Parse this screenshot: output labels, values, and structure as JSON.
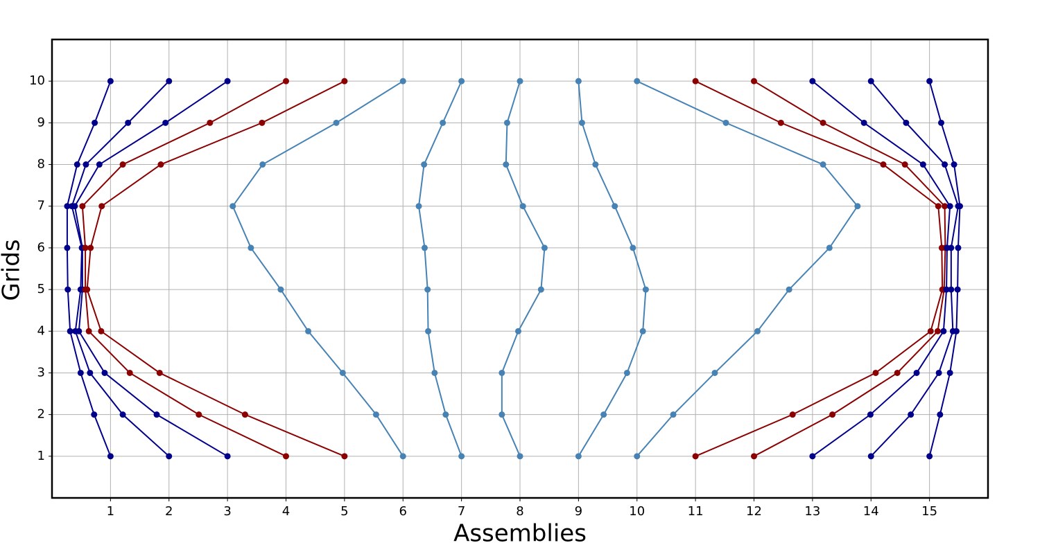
{
  "chart_data": {
    "type": "line",
    "xlabel": "Assemblies",
    "ylabel": "Grids",
    "xlim": [
      0,
      16
    ],
    "ylim": [
      0,
      11
    ],
    "xticks": [
      1,
      2,
      3,
      4,
      5,
      6,
      7,
      8,
      9,
      10,
      11,
      12,
      13,
      14,
      15
    ],
    "yticks": [
      1,
      2,
      3,
      4,
      5,
      6,
      7,
      8,
      9,
      10
    ],
    "grid": true,
    "y": [
      1,
      2,
      3,
      4,
      5,
      6,
      7,
      8,
      9,
      10
    ],
    "series": [
      {
        "color": "#00008b",
        "x": [
          1.0,
          0.72,
          0.49,
          0.31,
          0.27,
          0.26,
          0.26,
          0.43,
          0.73,
          1.0
        ]
      },
      {
        "color": "#00008b",
        "x": [
          2.0,
          1.21,
          0.65,
          0.4,
          0.49,
          0.51,
          0.34,
          0.58,
          1.3,
          2.0
        ]
      },
      {
        "color": "#00008b",
        "x": [
          3.0,
          1.79,
          0.9,
          0.46,
          0.52,
          0.52,
          0.39,
          0.81,
          1.94,
          3.0
        ]
      },
      {
        "color": "#8b0000",
        "x": [
          4.0,
          2.51,
          1.33,
          0.63,
          0.57,
          0.57,
          0.52,
          1.21,
          2.7,
          4.0
        ]
      },
      {
        "color": "#8b0000",
        "x": [
          5.0,
          3.3,
          1.84,
          0.84,
          0.6,
          0.66,
          0.85,
          1.86,
          3.59,
          5.0
        ]
      },
      {
        "color": "#4682b4",
        "x": [
          6.0,
          5.54,
          4.97,
          4.38,
          3.91,
          3.4,
          3.09,
          3.6,
          4.86,
          6.0
        ]
      },
      {
        "color": "#4682b4",
        "x": [
          7.0,
          6.73,
          6.54,
          6.43,
          6.42,
          6.37,
          6.27,
          6.36,
          6.68,
          7.0
        ]
      },
      {
        "color": "#4682b4",
        "x": [
          8.0,
          7.69,
          7.69,
          7.97,
          8.36,
          8.42,
          8.05,
          7.76,
          7.78,
          8.0
        ]
      },
      {
        "color": "#4682b4",
        "x": [
          9.0,
          9.43,
          9.83,
          10.1,
          10.15,
          9.93,
          9.62,
          9.29,
          9.06,
          9.0
        ]
      },
      {
        "color": "#4682b4",
        "x": [
          10.0,
          10.62,
          11.33,
          12.06,
          12.6,
          13.29,
          13.77,
          13.18,
          11.52,
          10.0
        ]
      },
      {
        "color": "#8b0000",
        "x": [
          11.0,
          12.66,
          14.08,
          15.02,
          15.22,
          15.21,
          15.15,
          14.21,
          12.46,
          11.0
        ]
      },
      {
        "color": "#8b0000",
        "x": [
          12.0,
          13.34,
          14.45,
          15.14,
          15.25,
          15.27,
          15.26,
          14.58,
          13.18,
          12.0
        ]
      },
      {
        "color": "#00008b",
        "x": [
          13.0,
          13.99,
          14.78,
          15.24,
          15.29,
          15.3,
          15.35,
          14.89,
          13.88,
          13.0
        ]
      },
      {
        "color": "#00008b",
        "x": [
          14.0,
          14.68,
          15.16,
          15.4,
          15.37,
          15.37,
          15.49,
          15.26,
          14.6,
          14.0
        ]
      },
      {
        "color": "#00008b",
        "x": [
          15.0,
          15.18,
          15.35,
          15.46,
          15.48,
          15.49,
          15.52,
          15.42,
          15.2,
          15.0
        ]
      }
    ]
  }
}
